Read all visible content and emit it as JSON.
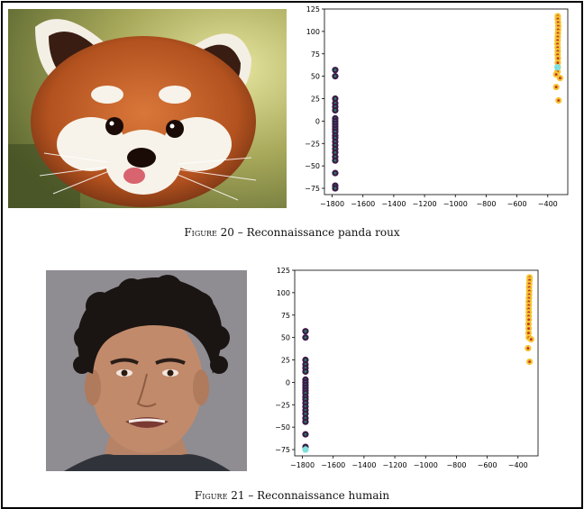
{
  "figures": [
    {
      "label": "Figure 20",
      "separator": " – ",
      "caption": "Reconnaissance panda roux",
      "photo_name": "red-panda-photo"
    },
    {
      "label": "Figure 21",
      "separator": " – ",
      "caption": "Reconnaissance humain",
      "photo_name": "human-face-photo"
    }
  ],
  "chart_data": [
    {
      "type": "scatter",
      "xlim": [
        -1850,
        -270
      ],
      "ylim": [
        -82,
        125
      ],
      "xticks": [
        -1800,
        -1600,
        -1400,
        -1200,
        -1000,
        -800,
        -600,
        -400
      ],
      "yticks": [
        -75,
        -50,
        -25,
        0,
        25,
        50,
        75,
        100,
        125
      ],
      "grid": false,
      "series": [
        {
          "color": "#3b1a4a",
          "inner_color": "#2a7a5a",
          "points": [
            [
              -1780,
              57
            ],
            [
              -1780,
              50
            ],
            [
              -1780,
              25
            ],
            [
              -1780,
              20
            ],
            [
              -1780,
              16
            ],
            [
              -1780,
              12
            ],
            [
              -1780,
              3
            ],
            [
              -1780,
              0
            ],
            [
              -1780,
              -3
            ],
            [
              -1780,
              -6
            ],
            [
              -1780,
              -9
            ],
            [
              -1780,
              -12
            ],
            [
              -1780,
              -16
            ],
            [
              -1780,
              -19
            ],
            [
              -1780,
              -23
            ],
            [
              -1780,
              -27
            ],
            [
              -1780,
              -31
            ],
            [
              -1780,
              -35
            ],
            [
              -1780,
              -40
            ],
            [
              -1780,
              -44
            ],
            [
              -1780,
              -58
            ],
            [
              -1780,
              -72
            ],
            [
              -1780,
              -75
            ]
          ]
        },
        {
          "color": "#f4c430",
          "inner_color": "#c0302c",
          "points": [
            [
              -335,
              117
            ],
            [
              -335,
              114
            ],
            [
              -333,
              110
            ],
            [
              -332,
              106
            ],
            [
              -333,
              102
            ],
            [
              -334,
              98
            ],
            [
              -335,
              94
            ],
            [
              -336,
              90
            ],
            [
              -337,
              86
            ],
            [
              -336,
              82
            ],
            [
              -335,
              78
            ],
            [
              -336,
              74
            ],
            [
              -334,
              70
            ],
            [
              -335,
              65
            ],
            [
              -335,
              60
            ],
            [
              -337,
              55
            ],
            [
              -345,
              52
            ],
            [
              -320,
              48
            ],
            [
              -345,
              38
            ],
            [
              -330,
              23
            ]
          ]
        },
        {
          "color": "#7fe0e0",
          "inner_color": "#7fe0e0",
          "points": [
            [
              -337,
              60
            ]
          ]
        }
      ]
    },
    {
      "type": "scatter",
      "xlim": [
        -1850,
        -270
      ],
      "ylim": [
        -82,
        125
      ],
      "xticks": [
        -1800,
        -1600,
        -1400,
        -1200,
        -1000,
        -800,
        -600,
        -400
      ],
      "yticks": [
        -75,
        -50,
        -25,
        0,
        25,
        50,
        75,
        100,
        125
      ],
      "grid": false,
      "series": [
        {
          "color": "#3b1a4a",
          "inner_color": "#2a7a5a",
          "points": [
            [
              -1780,
              57
            ],
            [
              -1780,
              50
            ],
            [
              -1780,
              25
            ],
            [
              -1780,
              20
            ],
            [
              -1780,
              16
            ],
            [
              -1780,
              12
            ],
            [
              -1780,
              3
            ],
            [
              -1780,
              0
            ],
            [
              -1780,
              -3
            ],
            [
              -1780,
              -6
            ],
            [
              -1780,
              -9
            ],
            [
              -1780,
              -12
            ],
            [
              -1780,
              -16
            ],
            [
              -1780,
              -19
            ],
            [
              -1780,
              -23
            ],
            [
              -1780,
              -27
            ],
            [
              -1780,
              -31
            ],
            [
              -1780,
              -35
            ],
            [
              -1780,
              -40
            ],
            [
              -1780,
              -44
            ],
            [
              -1780,
              -58
            ],
            [
              -1780,
              -72
            ]
          ]
        },
        {
          "color": "#f4c430",
          "inner_color": "#c0302c",
          "points": [
            [
              -325,
              117
            ],
            [
              -325,
              114
            ],
            [
              -327,
              110
            ],
            [
              -328,
              106
            ],
            [
              -327,
              102
            ],
            [
              -328,
              98
            ],
            [
              -329,
              94
            ],
            [
              -330,
              90
            ],
            [
              -330,
              86
            ],
            [
              -331,
              82
            ],
            [
              -330,
              78
            ],
            [
              -331,
              74
            ],
            [
              -330,
              70
            ],
            [
              -332,
              65
            ],
            [
              -331,
              60
            ],
            [
              -332,
              55
            ],
            [
              -330,
              50
            ],
            [
              -315,
              48
            ],
            [
              -335,
              38
            ],
            [
              -325,
              23
            ]
          ]
        },
        {
          "color": "#7fe0e0",
          "inner_color": "#7fe0e0",
          "points": [
            [
              -1780,
              -75
            ]
          ]
        }
      ]
    }
  ]
}
